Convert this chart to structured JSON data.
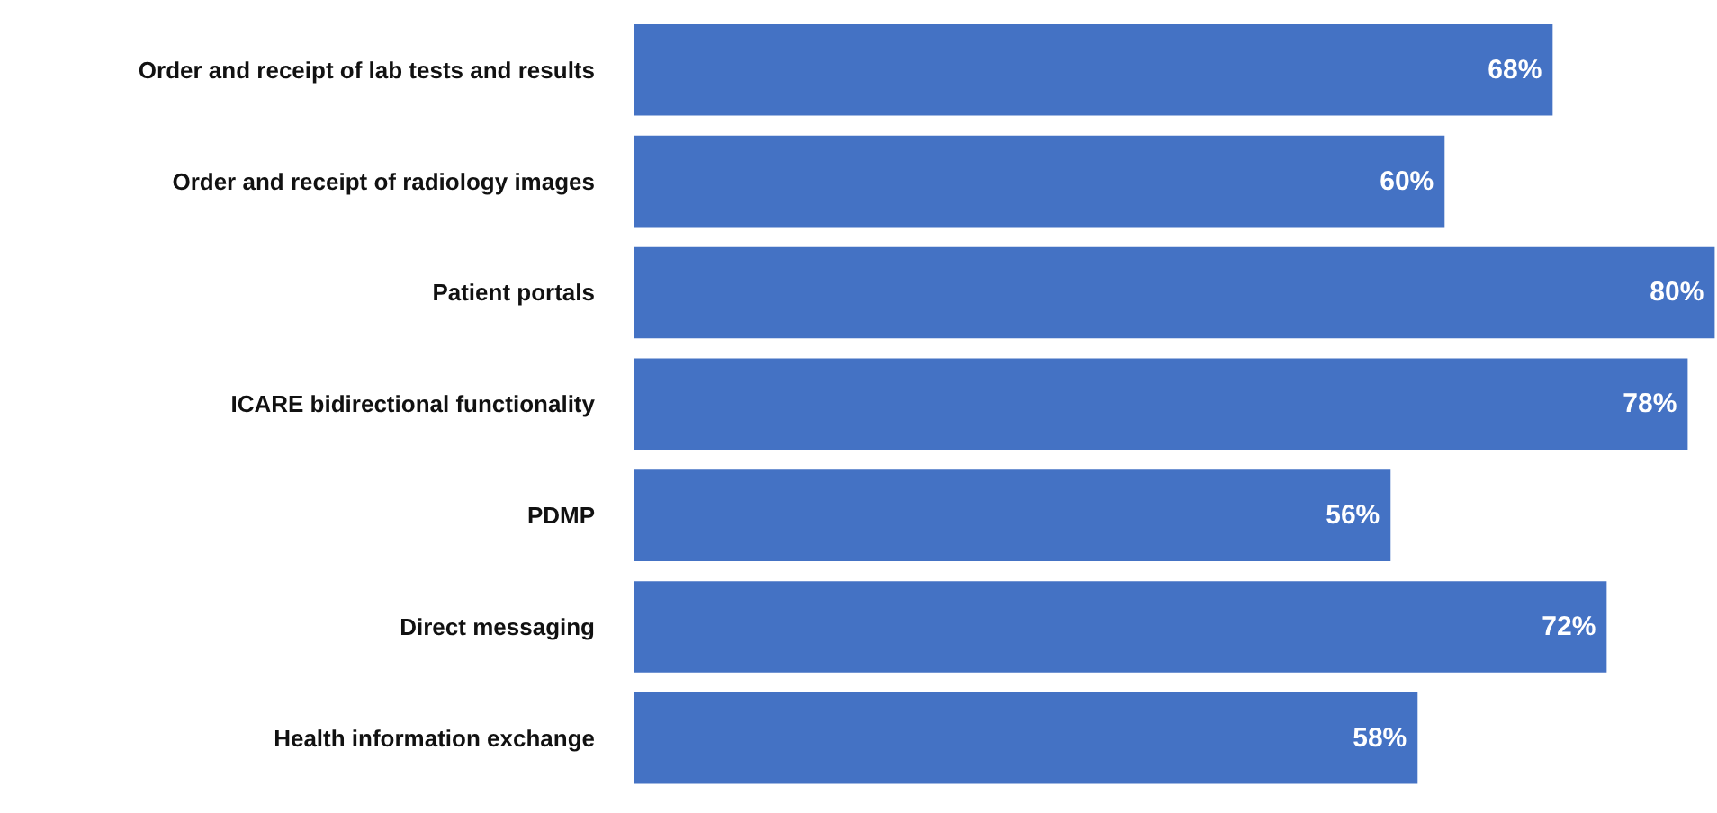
{
  "chart_data": {
    "type": "bar",
    "orientation": "horizontal",
    "categories": [
      "Order and receipt of lab tests and results",
      "Order and receipt of radiology images",
      "Patient portals",
      "ICARE bidirectional functionality",
      "PDMP",
      "Direct messaging",
      "Health information exchange"
    ],
    "values": [
      68,
      60,
      80,
      78,
      56,
      72,
      58
    ],
    "value_labels": [
      "68%",
      "60%",
      "80%",
      "78%",
      "56%",
      "72%",
      "58%"
    ],
    "color": "#4472c4",
    "grid": false
  }
}
